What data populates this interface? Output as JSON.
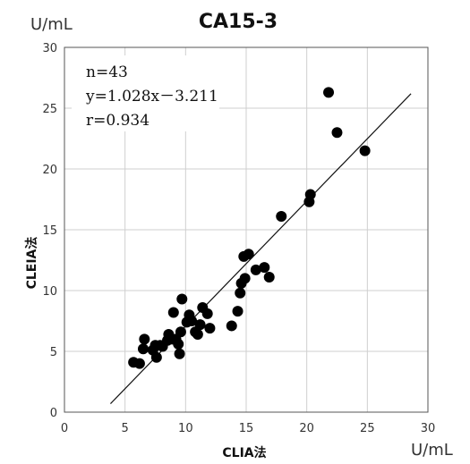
{
  "chart_data": {
    "type": "scatter",
    "title": "CA15-3",
    "xlabel": "CLIA法",
    "ylabel": "CLEIA法",
    "x_unit": "U/mL",
    "y_unit": "U/mL",
    "xlim": [
      0,
      30
    ],
    "ylim": [
      0,
      30
    ],
    "x_ticks": [
      "0",
      "5",
      "10",
      "15",
      "20",
      "25",
      "30"
    ],
    "y_ticks": [
      "0",
      "5",
      "10",
      "15",
      "20",
      "25",
      "30"
    ],
    "grid": true,
    "annotations": [
      "n=43",
      "y=1.028x－3.211",
      "r=0.934"
    ],
    "regression": {
      "slope": 1.028,
      "intercept": -3.211,
      "x_range": [
        3.8,
        28.6
      ]
    },
    "points": [
      [
        5.7,
        4.1
      ],
      [
        6.2,
        4.0
      ],
      [
        6.5,
        5.2
      ],
      [
        6.6,
        6.0
      ],
      [
        7.3,
        5.1
      ],
      [
        7.5,
        5.5
      ],
      [
        7.6,
        4.5
      ],
      [
        7.9,
        5.5
      ],
      [
        8.1,
        5.4
      ],
      [
        8.5,
        5.9
      ],
      [
        8.6,
        6.4
      ],
      [
        8.9,
        6.0
      ],
      [
        9.0,
        8.2
      ],
      [
        9.2,
        6.0
      ],
      [
        9.4,
        5.6
      ],
      [
        9.5,
        4.8
      ],
      [
        9.6,
        6.6
      ],
      [
        9.7,
        9.3
      ],
      [
        10.1,
        7.4
      ],
      [
        10.3,
        8.0
      ],
      [
        10.5,
        7.5
      ],
      [
        10.8,
        6.6
      ],
      [
        11.0,
        6.4
      ],
      [
        11.2,
        7.2
      ],
      [
        11.4,
        8.6
      ],
      [
        11.8,
        8.1
      ],
      [
        12.0,
        6.9
      ],
      [
        13.8,
        7.1
      ],
      [
        14.3,
        8.3
      ],
      [
        14.5,
        9.8
      ],
      [
        14.6,
        10.6
      ],
      [
        14.8,
        12.8
      ],
      [
        14.9,
        11.0
      ],
      [
        15.2,
        13.0
      ],
      [
        15.8,
        11.7
      ],
      [
        16.5,
        11.9
      ],
      [
        16.9,
        11.1
      ],
      [
        17.9,
        16.1
      ],
      [
        20.2,
        17.3
      ],
      [
        20.3,
        17.9
      ],
      [
        21.8,
        26.3
      ],
      [
        22.5,
        23.0
      ],
      [
        24.8,
        21.5
      ]
    ]
  }
}
